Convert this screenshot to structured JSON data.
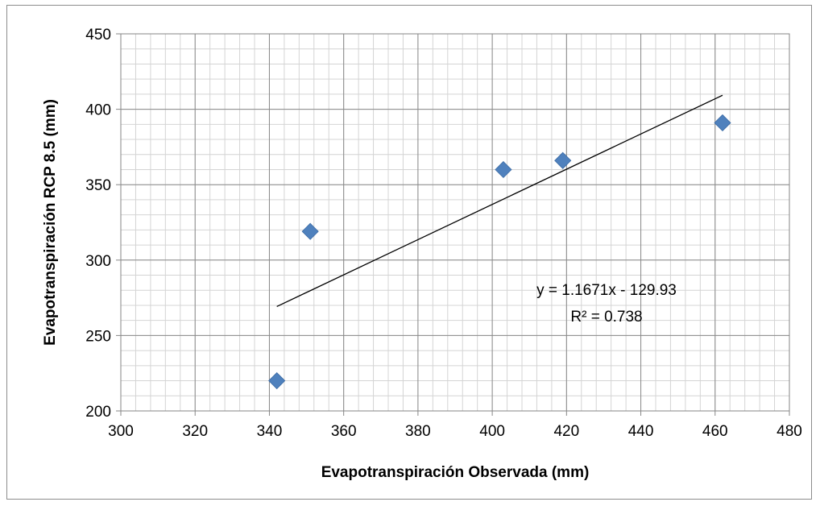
{
  "chart_data": {
    "type": "scatter",
    "xlabel": "Evapotranspiración Observada (mm)",
    "ylabel": "Evapotranspiración RCP 8.5 (mm)",
    "xlim": [
      300,
      480
    ],
    "ylim": [
      200,
      450
    ],
    "x_ticks": [
      "300",
      "320",
      "340",
      "360",
      "380",
      "400",
      "420",
      "440",
      "460",
      "480"
    ],
    "y_ticks": [
      "200",
      "250",
      "300",
      "350",
      "400",
      "450"
    ],
    "grid": true,
    "points": [
      {
        "x": 342,
        "y": 220
      },
      {
        "x": 351,
        "y": 319
      },
      {
        "x": 403,
        "y": 360
      },
      {
        "x": 419,
        "y": 366
      },
      {
        "x": 462,
        "y": 391
      }
    ],
    "marker_color": "#4f81bd",
    "trendline": {
      "slope": 1.1671,
      "intercept": -129.93,
      "x_range": [
        342,
        462
      ],
      "equation_label": "y = 1.1671x - 129.93",
      "r2_label": "R² = 0.738"
    }
  }
}
